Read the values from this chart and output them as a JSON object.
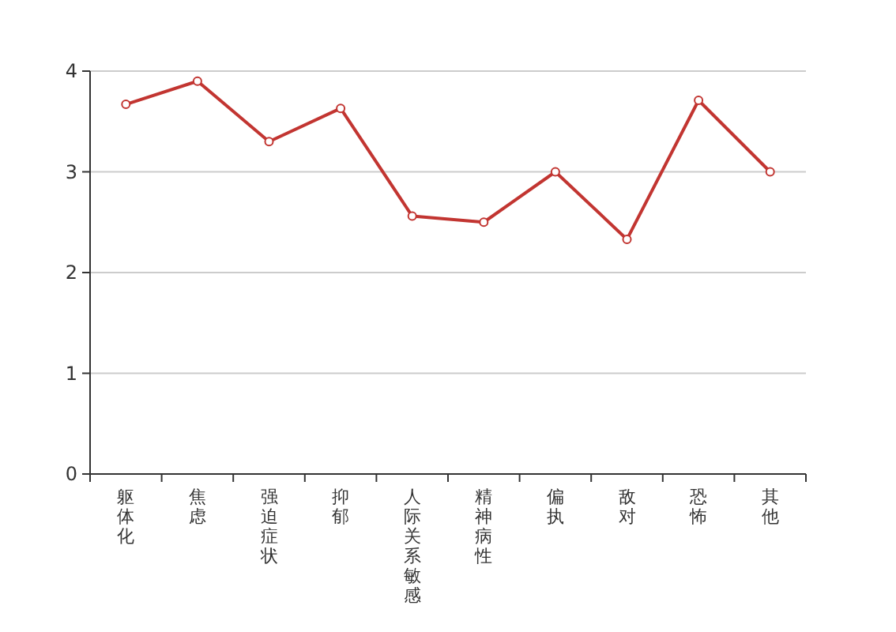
{
  "chart_data": {
    "type": "line",
    "categories": [
      "躯体化",
      "焦虑",
      "强迫症状",
      "抑郁",
      "人际关系敏感",
      "精神病性",
      "偏执",
      "敌对",
      "恐怖",
      "其他"
    ],
    "series": [
      {
        "color": "#c23531",
        "values": [
          3.67,
          3.9,
          3.3,
          3.63,
          2.56,
          2.5,
          3.0,
          2.33,
          3.71,
          3.0
        ]
      }
    ],
    "ylim": [
      0,
      4
    ],
    "yticks": [
      0,
      1,
      2,
      3,
      4
    ],
    "grid": "y",
    "marker": "circle",
    "line_style": "solid"
  }
}
